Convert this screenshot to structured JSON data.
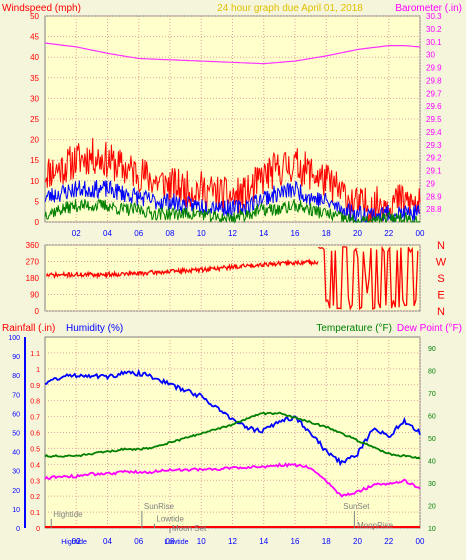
{
  "header": {
    "left_label": "Windspeed (mph)",
    "title": "24 hour graph due   April 01, 2018",
    "right_label": "Barometer (.in)"
  },
  "mid_header": {
    "left1": "Rainfall (.in)",
    "left2": "Humidity (%)",
    "right1": "Temperature (°F)",
    "right2": "Dew Point (°F)"
  },
  "colors": {
    "background": "#ffffcc",
    "grid": "#e0a0a0",
    "wind_max": "#ff0000",
    "wind_avg": "#0000ff",
    "wind_min": "#008000",
    "barometer": "#ff33ff",
    "wind_dir": "#ff0000",
    "humidity": "#0000ff",
    "temperature": "#008000",
    "dew_point": "#ff00ff",
    "rainfall": "#ff0000",
    "axis_left": "#ff0000",
    "axis_right": "#ff00ff",
    "axis_humidity": "#0000ff",
    "axis_temp": "#008000",
    "compass": "#ff0000",
    "annotation": "#808080"
  },
  "chart_data": [
    {
      "type": "line",
      "name": "wind-barometer",
      "x_tick_labels": [
        "02",
        "04",
        "06",
        "08",
        "10",
        "12",
        "14",
        "16",
        "18",
        "20",
        "22",
        "00"
      ],
      "xlim": [
        0,
        24
      ],
      "y_left": {
        "label": "Windspeed (mph)",
        "range": [
          0,
          50
        ],
        "ticks": [
          "0",
          "5",
          "10",
          "15",
          "20",
          "25",
          "30",
          "35",
          "40",
          "45",
          "50"
        ]
      },
      "y_right": {
        "label": "Barometer (.in)",
        "range": [
          28.7,
          30.3
        ],
        "ticks": [
          "28.8",
          "28.9",
          "29",
          "29.1",
          "29.2",
          "29.3",
          "29.4",
          "29.5",
          "29.6",
          "29.7",
          "29.8",
          "29.9",
          "30",
          "30.1",
          "30.2",
          "30.3"
        ]
      },
      "series": [
        {
          "key": "wind_max",
          "axis": "left",
          "x": [
            0,
            1,
            2,
            3,
            4,
            5,
            6,
            7,
            8,
            9,
            10,
            11,
            12,
            13,
            14,
            15,
            16,
            17,
            18,
            19,
            20,
            21,
            22,
            23,
            24
          ],
          "y": [
            12,
            13,
            15,
            16,
            15,
            13,
            12,
            10,
            9,
            8,
            8,
            7,
            6,
            7,
            11,
            13,
            14,
            12,
            10,
            7,
            4,
            4,
            5,
            5,
            4
          ]
        },
        {
          "key": "wind_avg",
          "axis": "left",
          "x": [
            0,
            1,
            2,
            3,
            4,
            5,
            6,
            7,
            8,
            9,
            10,
            11,
            12,
            13,
            14,
            15,
            16,
            17,
            18,
            19,
            20,
            21,
            22,
            23,
            24
          ],
          "y": [
            6,
            7,
            8,
            8,
            8,
            7,
            6,
            5,
            5,
            4,
            4,
            4,
            3,
            4,
            6,
            7,
            8,
            6,
            5,
            3,
            2,
            2,
            2,
            2,
            2
          ]
        },
        {
          "key": "wind_min",
          "axis": "left",
          "x": [
            0,
            1,
            2,
            3,
            4,
            5,
            6,
            7,
            8,
            9,
            10,
            11,
            12,
            13,
            14,
            15,
            16,
            17,
            18,
            19,
            20,
            21,
            22,
            23,
            24
          ],
          "y": [
            2,
            3,
            4,
            4,
            4,
            3,
            3,
            2,
            2,
            2,
            2,
            1,
            1,
            2,
            3,
            3,
            4,
            3,
            2,
            1,
            0,
            0,
            1,
            1,
            0
          ]
        },
        {
          "key": "barometer",
          "axis": "right",
          "x": [
            0,
            2,
            4,
            6,
            8,
            10,
            12,
            14,
            16,
            18,
            20,
            22,
            23,
            24
          ],
          "y": [
            30.09,
            30.06,
            30.01,
            29.97,
            29.96,
            29.95,
            29.94,
            29.93,
            29.95,
            29.99,
            30.04,
            30.07,
            30.07,
            30.06
          ]
        }
      ]
    },
    {
      "type": "line",
      "name": "wind-direction",
      "xlim": [
        0,
        24
      ],
      "ylim": [
        0,
        360
      ],
      "ticks": [
        "0",
        "90",
        "180",
        "270",
        "360"
      ],
      "compass": [
        "N",
        "W",
        "S",
        "E",
        "N"
      ],
      "series": [
        {
          "key": "wind_dir",
          "x": [
            0,
            2,
            4,
            6,
            8,
            10,
            12,
            14,
            16,
            17.5
          ],
          "y": [
            195,
            198,
            200,
            205,
            215,
            225,
            240,
            255,
            262,
            268
          ]
        }
      ]
    },
    {
      "type": "line",
      "name": "rain-humidity-temp",
      "x_tick_labels": [
        "02",
        "04",
        "06",
        "08",
        "10",
        "12",
        "14",
        "16",
        "18",
        "20",
        "22",
        "00"
      ],
      "xlim": [
        0,
        24
      ],
      "y_rain": {
        "range": [
          0,
          1.2
        ],
        "ticks": [
          "0",
          "0.1",
          "0.2",
          "0.3",
          "0.4",
          "0.5",
          "0.6",
          "0.7",
          "0.8",
          "0.9",
          "1",
          "1.1"
        ]
      },
      "y_humidity": {
        "range": [
          0,
          100
        ],
        "ticks": [
          "0",
          "10",
          "20",
          "30",
          "40",
          "50",
          "60",
          "70",
          "80",
          "90",
          "100"
        ]
      },
      "y_temp": {
        "range": [
          10,
          95
        ],
        "ticks": [
          "10",
          "20",
          "30",
          "40",
          "50",
          "60",
          "70",
          "80",
          "90"
        ]
      },
      "series": [
        {
          "key": "humidity",
          "axis": "humidity",
          "x": [
            0,
            1,
            2,
            3,
            4,
            5,
            6,
            7,
            8,
            9,
            10,
            11,
            12,
            13,
            14,
            15,
            16,
            17,
            18,
            19,
            20,
            21,
            22,
            23,
            24
          ],
          "y": [
            76,
            79,
            80,
            80,
            79,
            81,
            81,
            79,
            75,
            72,
            69,
            63,
            57,
            52,
            51,
            56,
            58,
            50,
            40,
            34,
            39,
            52,
            48,
            56,
            50
          ]
        },
        {
          "key": "temperature",
          "axis": "temp",
          "x": [
            0,
            1,
            2,
            3,
            4,
            5,
            6,
            7,
            8,
            9,
            10,
            11,
            12,
            13,
            14,
            15,
            16,
            17,
            18,
            19,
            20,
            21,
            22,
            23,
            24
          ],
          "y": [
            42,
            42,
            42,
            43,
            44,
            45,
            45,
            46,
            48,
            50,
            52,
            54,
            56,
            59,
            61,
            61,
            59,
            57,
            55,
            52,
            49,
            46,
            43,
            42,
            41
          ]
        },
        {
          "key": "dew_point",
          "axis": "temp",
          "x": [
            0,
            1,
            2,
            3,
            4,
            5,
            6,
            7,
            8,
            9,
            10,
            11,
            12,
            13,
            14,
            15,
            16,
            17,
            18,
            19,
            20,
            21,
            22,
            23,
            24
          ],
          "y": [
            32,
            33,
            33,
            34,
            34,
            35,
            35,
            35,
            36,
            36,
            36,
            36,
            37,
            37,
            37,
            38,
            38,
            37,
            31,
            24,
            26,
            29,
            30,
            31,
            28
          ]
        },
        {
          "key": "rainfall",
          "axis": "rain",
          "x": [
            0,
            24
          ],
          "y": [
            0,
            0
          ]
        }
      ],
      "annotations": [
        {
          "text": "Hightide",
          "x": 0.4,
          "level": 0.07
        },
        {
          "text": "SunRise",
          "x": 6.2,
          "level": 0.12
        },
        {
          "text": "Lowtide",
          "x": 7.0,
          "level": 0.04
        },
        {
          "text": "Moon Set",
          "x": 8.0,
          "level": -0.02
        },
        {
          "text": "SunSet",
          "x": 19.8,
          "level": 0.12
        },
        {
          "text": "MoonRise",
          "x": 21.0,
          "level": 0.0
        }
      ],
      "bottom_labels": [
        {
          "text": "Hightide",
          "x": 0.4
        },
        {
          "text": "Lowtide",
          "x": 7.0
        }
      ]
    }
  ]
}
